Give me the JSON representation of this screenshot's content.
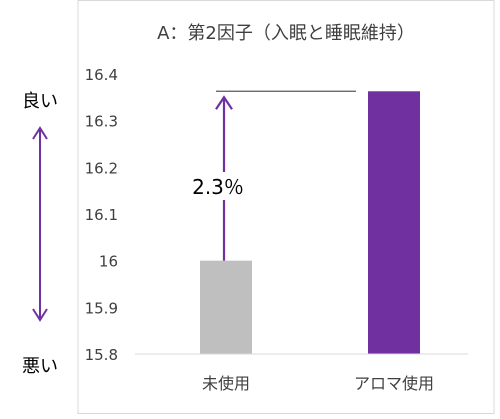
{
  "chart_data": {
    "type": "bar",
    "title": "A：第2因子（入眠と睡眠維持）",
    "categories": [
      "未使用",
      "アロマ使用"
    ],
    "values": [
      16.0,
      16.363
    ],
    "ylim": [
      15.8,
      16.4
    ],
    "yticks": [
      "15.8",
      "15.9",
      "16",
      "16.1",
      "16.2",
      "16.3",
      "16.4"
    ],
    "colors": {
      "bars": [
        "#bfbfbf",
        "#7030a0"
      ],
      "arrows": "#7030a0",
      "reference_line": "#595959",
      "frame": "#d9d9d9",
      "text": "#404040"
    },
    "annotation": {
      "label": "2.3％",
      "from": 16.0,
      "to": 16.363
    },
    "side_labels": {
      "top": "良い",
      "bottom": "悪い"
    },
    "grid": false,
    "legend": "none"
  }
}
